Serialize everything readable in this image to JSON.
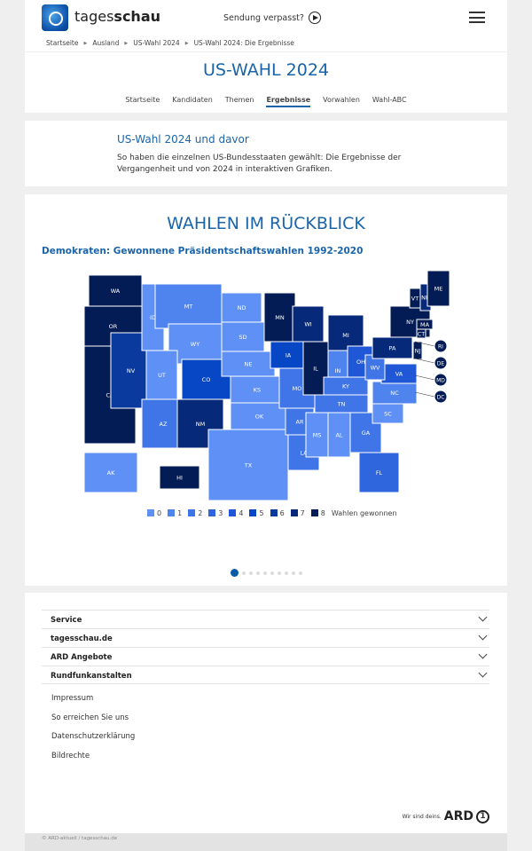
{
  "header": {
    "brand_light": "tages",
    "brand_bold": "schau",
    "missed": "Sendung verpasst?"
  },
  "breadcrumb": [
    "Startseite",
    "Ausland",
    "US-Wahl 2024",
    "US-Wahl 2024: Die Ergebnisse"
  ],
  "section": {
    "title": "US-WAHL 2024",
    "nav": [
      "Startseite",
      "Kandidaten",
      "Themen",
      "Ergebnisse",
      "Vorwahlen",
      "Wahl-ABC"
    ],
    "active": "Ergebnisse"
  },
  "intro": {
    "title": "US-Wahl 2024 und davor",
    "text": "So haben die einzelnen US-Bundesstaaten gewählt: Die Ergebnisse der Vergangenheit und von 2024 in interaktiven Grafiken."
  },
  "map": {
    "heading": "WAHLEN IM RÜCKBLICK",
    "title": "Demokraten: Gewonnene Präsidentschaftswahlen 1992-2020",
    "legend_label": "Wahlen gewonnen",
    "scale": [
      {
        "value": "0",
        "color": "#5f90f6"
      },
      {
        "value": "1",
        "color": "#4f84ef"
      },
      {
        "value": "2",
        "color": "#3f75e6"
      },
      {
        "value": "3",
        "color": "#2f66dd"
      },
      {
        "value": "4",
        "color": "#1f57d6"
      },
      {
        "value": "5",
        "color": "#0747c6"
      },
      {
        "value": "6",
        "color": "#0a3a9e"
      },
      {
        "value": "7",
        "color": "#06297a"
      },
      {
        "value": "8",
        "color": "#041c55"
      }
    ],
    "states": {
      "WA": 8,
      "OR": 8,
      "CA": 8,
      "NV": 6,
      "ID": 0,
      "MT": 1,
      "WY": 0,
      "UT": 0,
      "AZ": 2,
      "CO": 5,
      "NM": 7,
      "ND": 0,
      "SD": 0,
      "NE": 0,
      "KS": 0,
      "OK": 0,
      "TX": 0,
      "MN": 8,
      "IA": 5,
      "MO": 2,
      "AR": 2,
      "LA": 2,
      "WI": 7,
      "IL": 8,
      "MI": 7,
      "IN": 1,
      "OH": 4,
      "KY": 2,
      "TN": 2,
      "MS": 0,
      "AL": 0,
      "GA": 2,
      "FL": 3,
      "SC": 0,
      "NC": 1,
      "VA": 4,
      "WV": 2,
      "PA": 7,
      "NY": 8,
      "VT": 8,
      "NH": 7,
      "ME": 8,
      "MA": 8,
      "CT": 8,
      "NJ": 8,
      "RI": 8,
      "DE": 8,
      "MD": 8,
      "DC": 8,
      "AK": 0,
      "HI": 8
    },
    "pages": 10,
    "current_page": 1
  },
  "footer": {
    "sections": [
      "Service",
      "tagesschau.de",
      "ARD Angebote",
      "Rundfunkanstalten"
    ],
    "links": [
      "Impressum",
      "So erreichen Sie uns",
      "Datenschutzerklärung",
      "Bildrechte"
    ],
    "ard_claim": "Wir sind deins.",
    "ard": "ARD",
    "copyright": "© ARD-aktuell / tagesschau.de"
  }
}
